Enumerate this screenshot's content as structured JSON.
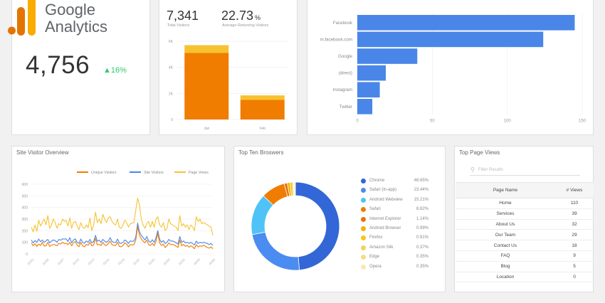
{
  "logo": {
    "line1": "Google",
    "line2": "Analytics"
  },
  "kpi": {
    "value": "4,756",
    "delta": "▲16%"
  },
  "visitors_card": {
    "total_value": "7,341",
    "total_label": "Total Visitors",
    "returning_value": "22.73",
    "returning_unit": "%",
    "returning_label": "Average Returning Visitors"
  },
  "referrers_card": {},
  "site_visitor_card": {
    "title": "Site Visitor Overview"
  },
  "browsers_card": {
    "title": "Top Ten Broswers"
  },
  "pages_card": {
    "title": "Top Page Views",
    "filter_placeholder": "Filter Results",
    "col_page": "Page Name",
    "col_views": "# Views"
  },
  "page_rows": [
    {
      "name": "Home",
      "views": "110"
    },
    {
      "name": "Services",
      "views": "39"
    },
    {
      "name": "About Us",
      "views": "32"
    },
    {
      "name": "Our Team",
      "views": "29"
    },
    {
      "name": "Contact Us",
      "views": "18"
    },
    {
      "name": "FAQ",
      "views": "9"
    },
    {
      "name": "Blog",
      "views": "5"
    },
    {
      "name": "Location",
      "views": "0"
    }
  ],
  "colors": {
    "orange": "#f07c00",
    "yellow": "#f7c231",
    "blue": "#4a86e8",
    "green": "#2ecc71"
  },
  "chart_data": [
    {
      "id": "visitors_bar",
      "type": "bar",
      "categories": [
        "Jan",
        "Feb"
      ],
      "series": [
        {
          "values": [
            5100,
            1500
          ],
          "color": "#f07c00"
        },
        {
          "values": [
            600,
            350
          ],
          "color": "#f7c231"
        }
      ],
      "stacked": true,
      "ylim": [
        0,
        6000
      ],
      "yticks": [
        0,
        2000,
        4000,
        6000
      ],
      "ytick_labels": [
        "0",
        "2K",
        "4K",
        "6K"
      ],
      "grid": true
    },
    {
      "id": "referrer_bar",
      "type": "bar",
      "orientation": "horizontal",
      "categories": [
        "Facebook",
        "m.facebook.com",
        "Google",
        "(direct)",
        "Instagram",
        "Twitter"
      ],
      "values": [
        145,
        124,
        40,
        19,
        15,
        10
      ],
      "color": "#4a86e8",
      "xlim": [
        0,
        150
      ],
      "xticks": [
        0,
        50,
        100,
        150
      ],
      "grid": true
    },
    {
      "id": "site_visitor_line",
      "type": "line",
      "x": [
        "01/01",
        "01/03",
        "01/05",
        "01/07",
        "01/09",
        "01/11",
        "01/13",
        "01/15",
        "01/17",
        "01/19",
        "01/21",
        "01/23",
        "01/25",
        "01/27",
        "01/29",
        "01/31",
        "02/02",
        "02/04",
        "02/06",
        "02/08",
        "02/10",
        "02/12",
        "02/14",
        "02/16",
        "02/18",
        "02/20",
        "02/22",
        "02/24",
        "02/26",
        "02/28",
        "03/01",
        "03/03",
        "03/05",
        "03/07",
        "03/09",
        "03/11",
        "03/13",
        "03/15",
        "03/17",
        "03/19",
        "03/21",
        "03/23",
        "03/25",
        "03/27",
        "03/29",
        "03/31",
        "04/02",
        "04/04",
        "04/06",
        "04/08",
        "04/10",
        "04/12",
        "04/14",
        "04/16",
        "04/18",
        "04/20",
        "04/22",
        "04/24",
        "04/26",
        "04/28",
        "04/30",
        "05/02",
        "05/04",
        "05/06",
        "05/08",
        "05/10",
        "05/12",
        "05/14",
        "05/16",
        "05/18",
        "05/20",
        "05/22",
        "05/24",
        "05/26",
        "05/28",
        "05/30",
        "06/01",
        "06/03",
        "06/05",
        "06/07",
        "06/09",
        "06/11",
        "06/13",
        "06/15",
        "06/17",
        "06/19",
        "06/21",
        "06/23",
        "06/25",
        "06/27",
        "06/29",
        "07/01",
        "07/03",
        "07/05",
        "07/07",
        "07/09",
        "07/11",
        "07/13",
        "07/15",
        "07/17"
      ],
      "xtick_labels": [
        "01/01",
        "01/04",
        "01/07",
        "01/10",
        "01/13",
        "01/16",
        "01/19",
        "01/22",
        "01/25",
        "01/28",
        "01/31",
        "02/03",
        "02/06"
      ],
      "series": [
        {
          "name": "Unique Visitors",
          "color": "#f07c00",
          "values": [
            95,
            70,
            88,
            65,
            85,
            72,
            100,
            68,
            70,
            100,
            65,
            75,
            82,
            78,
            70,
            90,
            85,
            100,
            88,
            92,
            80,
            100,
            70,
            95,
            108,
            75,
            62,
            100,
            70,
            62,
            82,
            75,
            100,
            70,
            78,
            135,
            78,
            82,
            72,
            100,
            78,
            72,
            90,
            110,
            80,
            75,
            72,
            100,
            65,
            62,
            72,
            95,
            85,
            60,
            80,
            78,
            80,
            120,
            235,
            160,
            130,
            110,
            95,
            120,
            80,
            72,
            92,
            70,
            110,
            180,
            95,
            72,
            85,
            55,
            70,
            95,
            80,
            82,
            75,
            68,
            55,
            120,
            70,
            82,
            65,
            75,
            58,
            70,
            60,
            45,
            80,
            60,
            70,
            65,
            75,
            65,
            55,
            50,
            60,
            45
          ]
        },
        {
          "name": "Site Visitors",
          "color": "#4a86e8",
          "values": [
            120,
            95,
            115,
            100,
            128,
            105,
            120,
            100,
            112,
            125,
            95,
            110,
            120,
            115,
            100,
            125,
            118,
            130,
            128,
            130,
            108,
            140,
            95,
            120,
            130,
            100,
            90,
            128,
            100,
            92,
            112,
            100,
            125,
            95,
            108,
            160,
            110,
            118,
            100,
            125,
            110,
            100,
            112,
            140,
            108,
            100,
            98,
            128,
            95,
            90,
            100,
            120,
            110,
            90,
            112,
            108,
            112,
            145,
            265,
            190,
            160,
            140,
            120,
            150,
            112,
            100,
            122,
            100,
            140,
            200,
            125,
            100,
            115,
            90,
            100,
            125,
            110,
            112,
            105,
            95,
            85,
            150,
            100,
            112,
            95,
            100,
            90,
            100,
            88,
            78,
            110,
            90,
            100,
            95,
            100,
            95,
            90,
            80,
            90,
            75
          ]
        },
        {
          "name": "Page Views",
          "color": "#f7c231",
          "values": [
            230,
            190,
            250,
            195,
            290,
            240,
            270,
            300,
            250,
            330,
            220,
            250,
            300,
            270,
            220,
            260,
            250,
            300,
            280,
            290,
            240,
            310,
            220,
            270,
            280,
            240,
            210,
            270,
            230,
            220,
            250,
            225,
            310,
            200,
            250,
            360,
            270,
            300,
            260,
            340,
            300,
            270,
            310,
            320,
            280,
            260,
            250,
            300,
            230,
            220,
            250,
            290,
            270,
            230,
            260,
            265,
            270,
            380,
            480,
            420,
            300,
            250,
            220,
            260,
            280,
            230,
            280,
            230,
            300,
            320,
            250,
            230,
            270,
            200,
            220,
            300,
            260,
            250,
            240,
            230,
            200,
            330,
            240,
            260,
            230,
            250,
            210,
            250,
            230,
            200,
            320,
            280,
            300,
            260,
            270,
            260,
            250,
            240,
            230,
            160
          ]
        }
      ],
      "ylim": [
        0,
        600
      ],
      "yticks": [
        0,
        100,
        200,
        300,
        400,
        500,
        600
      ],
      "legend": "top-right",
      "grid": true
    },
    {
      "id": "browsers_donut",
      "type": "pie",
      "donut": true,
      "labels": [
        "Chrome",
        "Safari (in-app)",
        "Android Webview",
        "Safari",
        "Internet Explorer",
        "Android Browser",
        "Firefox",
        "Amazon Silk",
        "Edge",
        "Opera"
      ],
      "display": [
        "48.65%",
        "23.44%",
        "15.21%",
        "8.82%",
        "1.14%",
        "0.99%",
        "0.91%",
        "0.37%",
        "0.35%",
        "0.35%"
      ],
      "values": [
        48.65,
        23.44,
        15.21,
        8.82,
        1.14,
        0.99,
        0.91,
        0.37,
        0.35,
        0.35
      ],
      "colors": [
        "#3366d6",
        "#4a8cf0",
        "#4fc3f7",
        "#f07c00",
        "#e8740c",
        "#f0b400",
        "#f5c518",
        "#f3d060",
        "#f6dc82",
        "#f8e8b5"
      ],
      "legend": "right"
    }
  ]
}
